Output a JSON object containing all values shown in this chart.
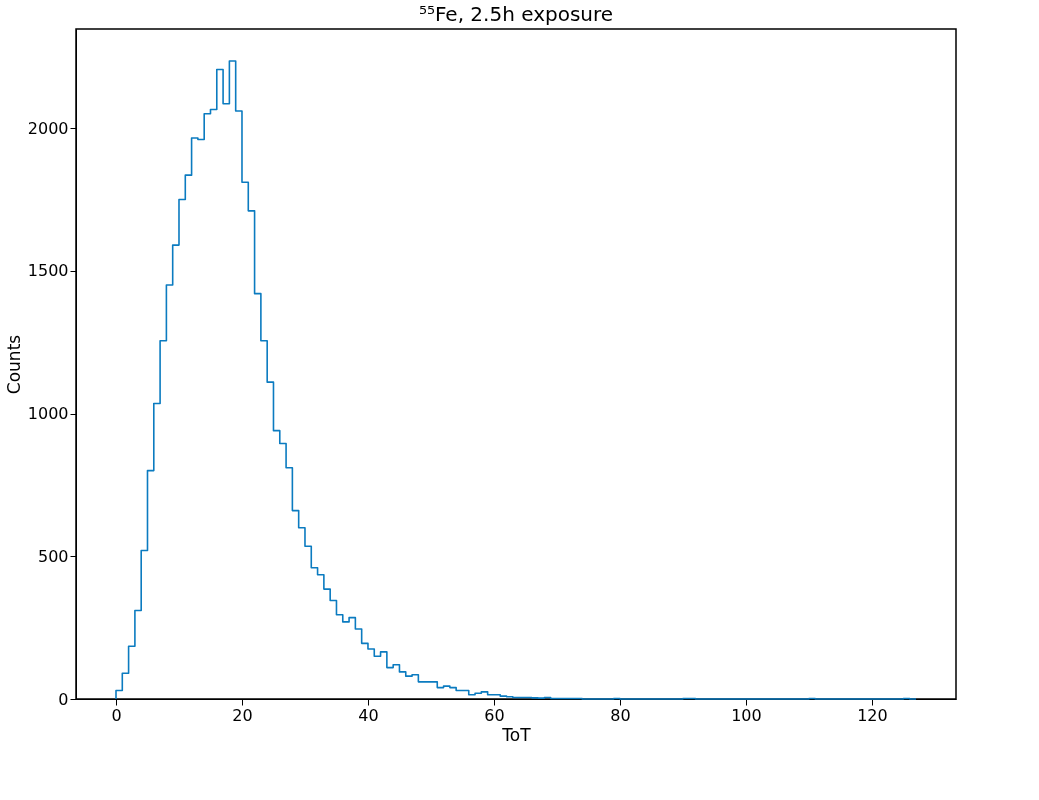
{
  "chart_data": {
    "type": "histogram",
    "title": "⁵⁵Fe, 2.5h exposure",
    "xlabel": "ToT",
    "ylabel": "Counts",
    "bins": [
      0,
      1,
      2,
      3,
      4,
      5,
      6,
      7,
      8,
      9,
      10,
      11,
      12,
      13,
      14,
      15,
      16,
      17,
      18,
      19,
      20,
      21,
      22,
      23,
      24,
      25,
      26,
      27,
      28,
      29,
      30,
      31,
      32,
      33,
      34,
      35,
      36,
      37,
      38,
      39,
      40,
      41,
      42,
      43,
      44,
      45,
      46,
      47,
      48,
      49,
      50,
      51,
      52,
      53,
      54,
      55,
      56,
      57,
      58,
      59,
      60,
      61,
      62,
      63,
      64,
      65,
      66,
      67,
      68,
      69,
      70,
      71,
      72,
      73,
      74,
      75,
      76,
      77,
      78,
      79,
      80,
      81,
      82,
      83,
      84,
      85,
      86,
      87,
      88,
      89,
      90,
      91,
      92,
      93,
      94,
      95,
      96,
      97,
      98,
      99,
      100,
      101,
      102,
      103,
      104,
      105,
      106,
      107,
      108,
      109,
      110,
      111,
      112,
      113,
      114,
      115,
      116,
      117,
      118,
      119,
      120,
      121,
      122,
      123,
      124,
      125,
      126,
      127
    ],
    "values": [
      30,
      90,
      185,
      310,
      520,
      800,
      1035,
      1255,
      1450,
      1590,
      1750,
      1835,
      1965,
      1960,
      2050,
      2065,
      2205,
      2085,
      2235,
      2060,
      1810,
      1710,
      1420,
      1255,
      1110,
      940,
      895,
      810,
      660,
      600,
      535,
      460,
      435,
      385,
      345,
      295,
      270,
      285,
      245,
      195,
      175,
      150,
      165,
      110,
      120,
      95,
      80,
      85,
      60,
      60,
      60,
      40,
      45,
      40,
      30,
      30,
      15,
      20,
      25,
      15,
      15,
      10,
      8,
      5,
      5,
      5,
      4,
      3,
      5,
      2,
      2,
      2,
      2,
      2,
      0,
      0,
      0,
      0,
      0,
      2,
      0,
      0,
      0,
      0,
      0,
      0,
      0,
      0,
      0,
      0,
      2,
      2,
      0,
      0,
      0,
      0,
      0,
      0,
      0,
      0,
      0,
      0,
      0,
      0,
      0,
      0,
      0,
      0,
      0,
      0,
      2,
      0,
      0,
      0,
      0,
      0,
      0,
      0,
      0,
      0,
      0,
      0,
      0,
      0,
      0,
      2,
      0
    ],
    "color": "#0b7bc0",
    "xlim": [
      -6.35,
      133.35
    ],
    "ylim": [
      0,
      2347
    ],
    "xticks": [
      0,
      20,
      40,
      60,
      80,
      100,
      120
    ],
    "yticks": [
      0,
      500,
      1000,
      1500,
      2000
    ],
    "grid": false
  }
}
